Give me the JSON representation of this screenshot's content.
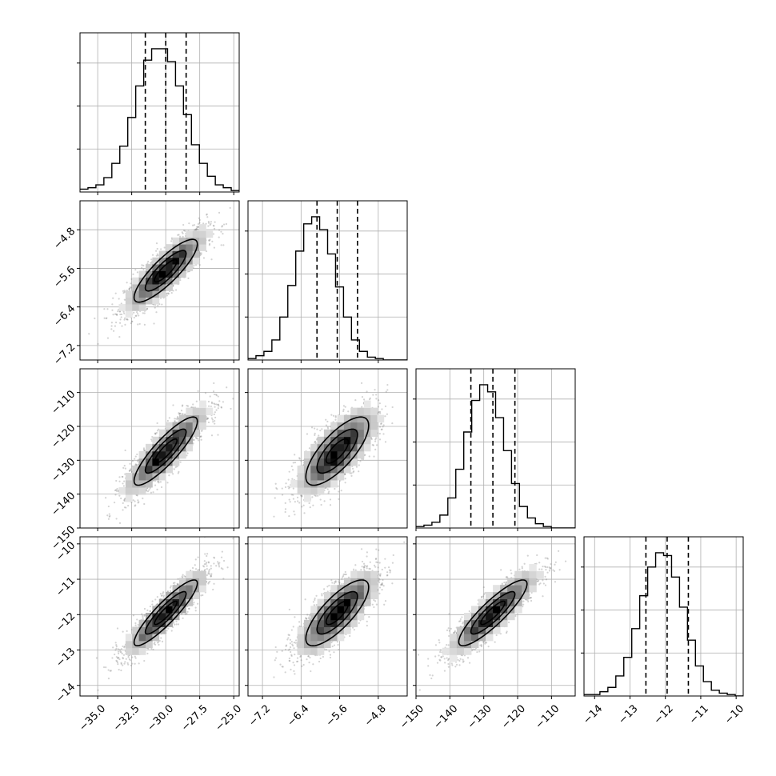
{
  "chart_data": {
    "type": "corner",
    "parameters": [
      {
        "range": [
          -36.3,
          -24.6
        ],
        "ticks": [
          -35.0,
          -32.5,
          -30.0,
          -27.5,
          -25.0
        ],
        "tick_labels": [
          "−35.0",
          "−32.5",
          "−30.0",
          "−27.5",
          "−25.0"
        ],
        "mean": -30.0,
        "sd": 1.5,
        "quantiles": [
          -31.5,
          -30.0,
          -28.5
        ]
      },
      {
        "range": [
          -7.5,
          -4.2
        ],
        "ticks": [
          -7.2,
          -6.4,
          -5.6,
          -4.8
        ],
        "tick_labels": [
          "−7.2",
          "−6.4",
          "−5.6",
          "−4.8"
        ],
        "mean": -5.65,
        "sd": 0.42,
        "quantiles": [
          -6.07,
          -5.65,
          -5.23
        ]
      },
      {
        "range": [
          -150,
          -103
        ],
        "ticks": [
          -150,
          -140,
          -130,
          -120,
          -110
        ],
        "tick_labels": [
          "−150",
          "−140",
          "−130",
          "−120",
          "−110"
        ],
        "mean": -127.3,
        "sd": 6.5,
        "quantiles": [
          -133.8,
          -127.3,
          -120.8
        ]
      },
      {
        "range": [
          -14.3,
          -9.8
        ],
        "ticks": [
          -14,
          -13,
          -12,
          -11,
          -10
        ],
        "tick_labels": [
          "−14",
          "−13",
          "−12",
          "−11",
          "−10"
        ],
        "mean": -11.95,
        "sd": 0.6,
        "quantiles": [
          -12.55,
          -11.95,
          -11.35
        ]
      }
    ],
    "correlations": [
      [
        1.0,
        0.85,
        0.87,
        0.9
      ],
      [
        0.85,
        1.0,
        0.75,
        0.78
      ],
      [
        0.87,
        0.75,
        1.0,
        0.88
      ],
      [
        0.9,
        0.78,
        0.88,
        1.0
      ]
    ],
    "histogram_heights": [
      [
        2,
        3,
        5,
        10,
        20,
        32,
        52,
        74,
        92,
        100,
        100,
        91,
        74,
        54,
        33,
        20,
        11,
        5,
        3,
        1
      ],
      [
        1,
        3,
        6,
        14,
        30,
        52,
        76,
        95,
        100,
        91,
        74,
        51,
        30,
        14,
        6,
        2,
        1,
        0,
        0,
        0
      ],
      [
        1,
        2,
        4,
        9,
        21,
        41,
        67,
        89,
        100,
        95,
        77,
        54,
        31,
        15,
        7,
        3,
        1,
        0,
        0,
        0
      ],
      [
        1,
        1,
        3,
        6,
        14,
        27,
        47,
        70,
        90,
        100,
        98,
        83,
        62,
        39,
        21,
        10,
        4,
        2,
        1,
        0
      ]
    ],
    "quantile_lines": "dashed",
    "contour_levels": 3,
    "grid": true,
    "colors": {
      "line": "#000000",
      "grid": "#b0b0b0",
      "points": "#808080",
      "fill_base": "#ffffff"
    }
  }
}
